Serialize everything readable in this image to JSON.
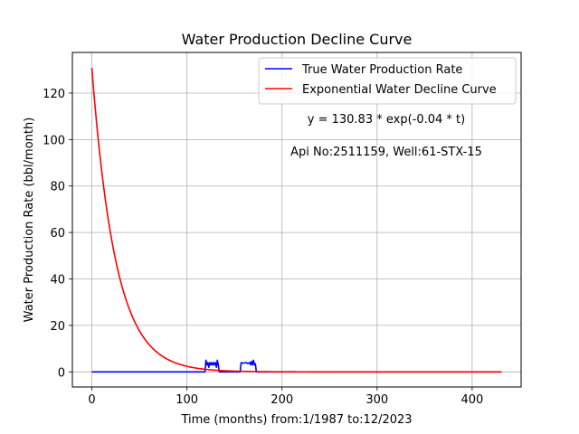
{
  "chart_data": {
    "type": "line",
    "title": "Water Production Decline Curve",
    "xlabel": "Time (months) from:1/1987 to:12/2023",
    "ylabel": "Water Production Rate (bbl/month)",
    "xlim": [
      -20.5,
      451.5
    ],
    "ylim": [
      -6.5,
      137.5
    ],
    "xticks": [
      0,
      100,
      200,
      300,
      400
    ],
    "yticks": [
      0,
      20,
      40,
      60,
      80,
      100,
      120
    ],
    "grid": true,
    "legend_position": "upper right",
    "annotations": [
      "y = 130.83 * exp(-0.04 * t)",
      "Api No:2511159, Well:61-STX-15"
    ],
    "series": [
      {
        "name": "True Water Production Rate",
        "color": "#0000ff",
        "points": [
          [
            0,
            0
          ],
          [
            119,
            0
          ],
          [
            120,
            5
          ],
          [
            121,
            3
          ],
          [
            122,
            4
          ],
          [
            123,
            2
          ],
          [
            124,
            4
          ],
          [
            125,
            3
          ],
          [
            126,
            4
          ],
          [
            127,
            3
          ],
          [
            128,
            4
          ],
          [
            129,
            3
          ],
          [
            130,
            4
          ],
          [
            131,
            2
          ],
          [
            132,
            5
          ],
          [
            133,
            3
          ],
          [
            134,
            0
          ],
          [
            156,
            0
          ],
          [
            157,
            4
          ],
          [
            158,
            3.8
          ],
          [
            160,
            3.8
          ],
          [
            162,
            4
          ],
          [
            164,
            3.6
          ],
          [
            166,
            4
          ],
          [
            167,
            3
          ],
          [
            168,
            4.5
          ],
          [
            169,
            3
          ],
          [
            170,
            5
          ],
          [
            171,
            3
          ],
          [
            172,
            3.5
          ],
          [
            173,
            0
          ],
          [
            431,
            0
          ]
        ]
      },
      {
        "name": "Exponential Water Decline Curve",
        "color": "#ff0000",
        "model": {
          "a": 130.83,
          "b": 0.04,
          "t_start": 0,
          "t_end": 431
        }
      }
    ]
  }
}
